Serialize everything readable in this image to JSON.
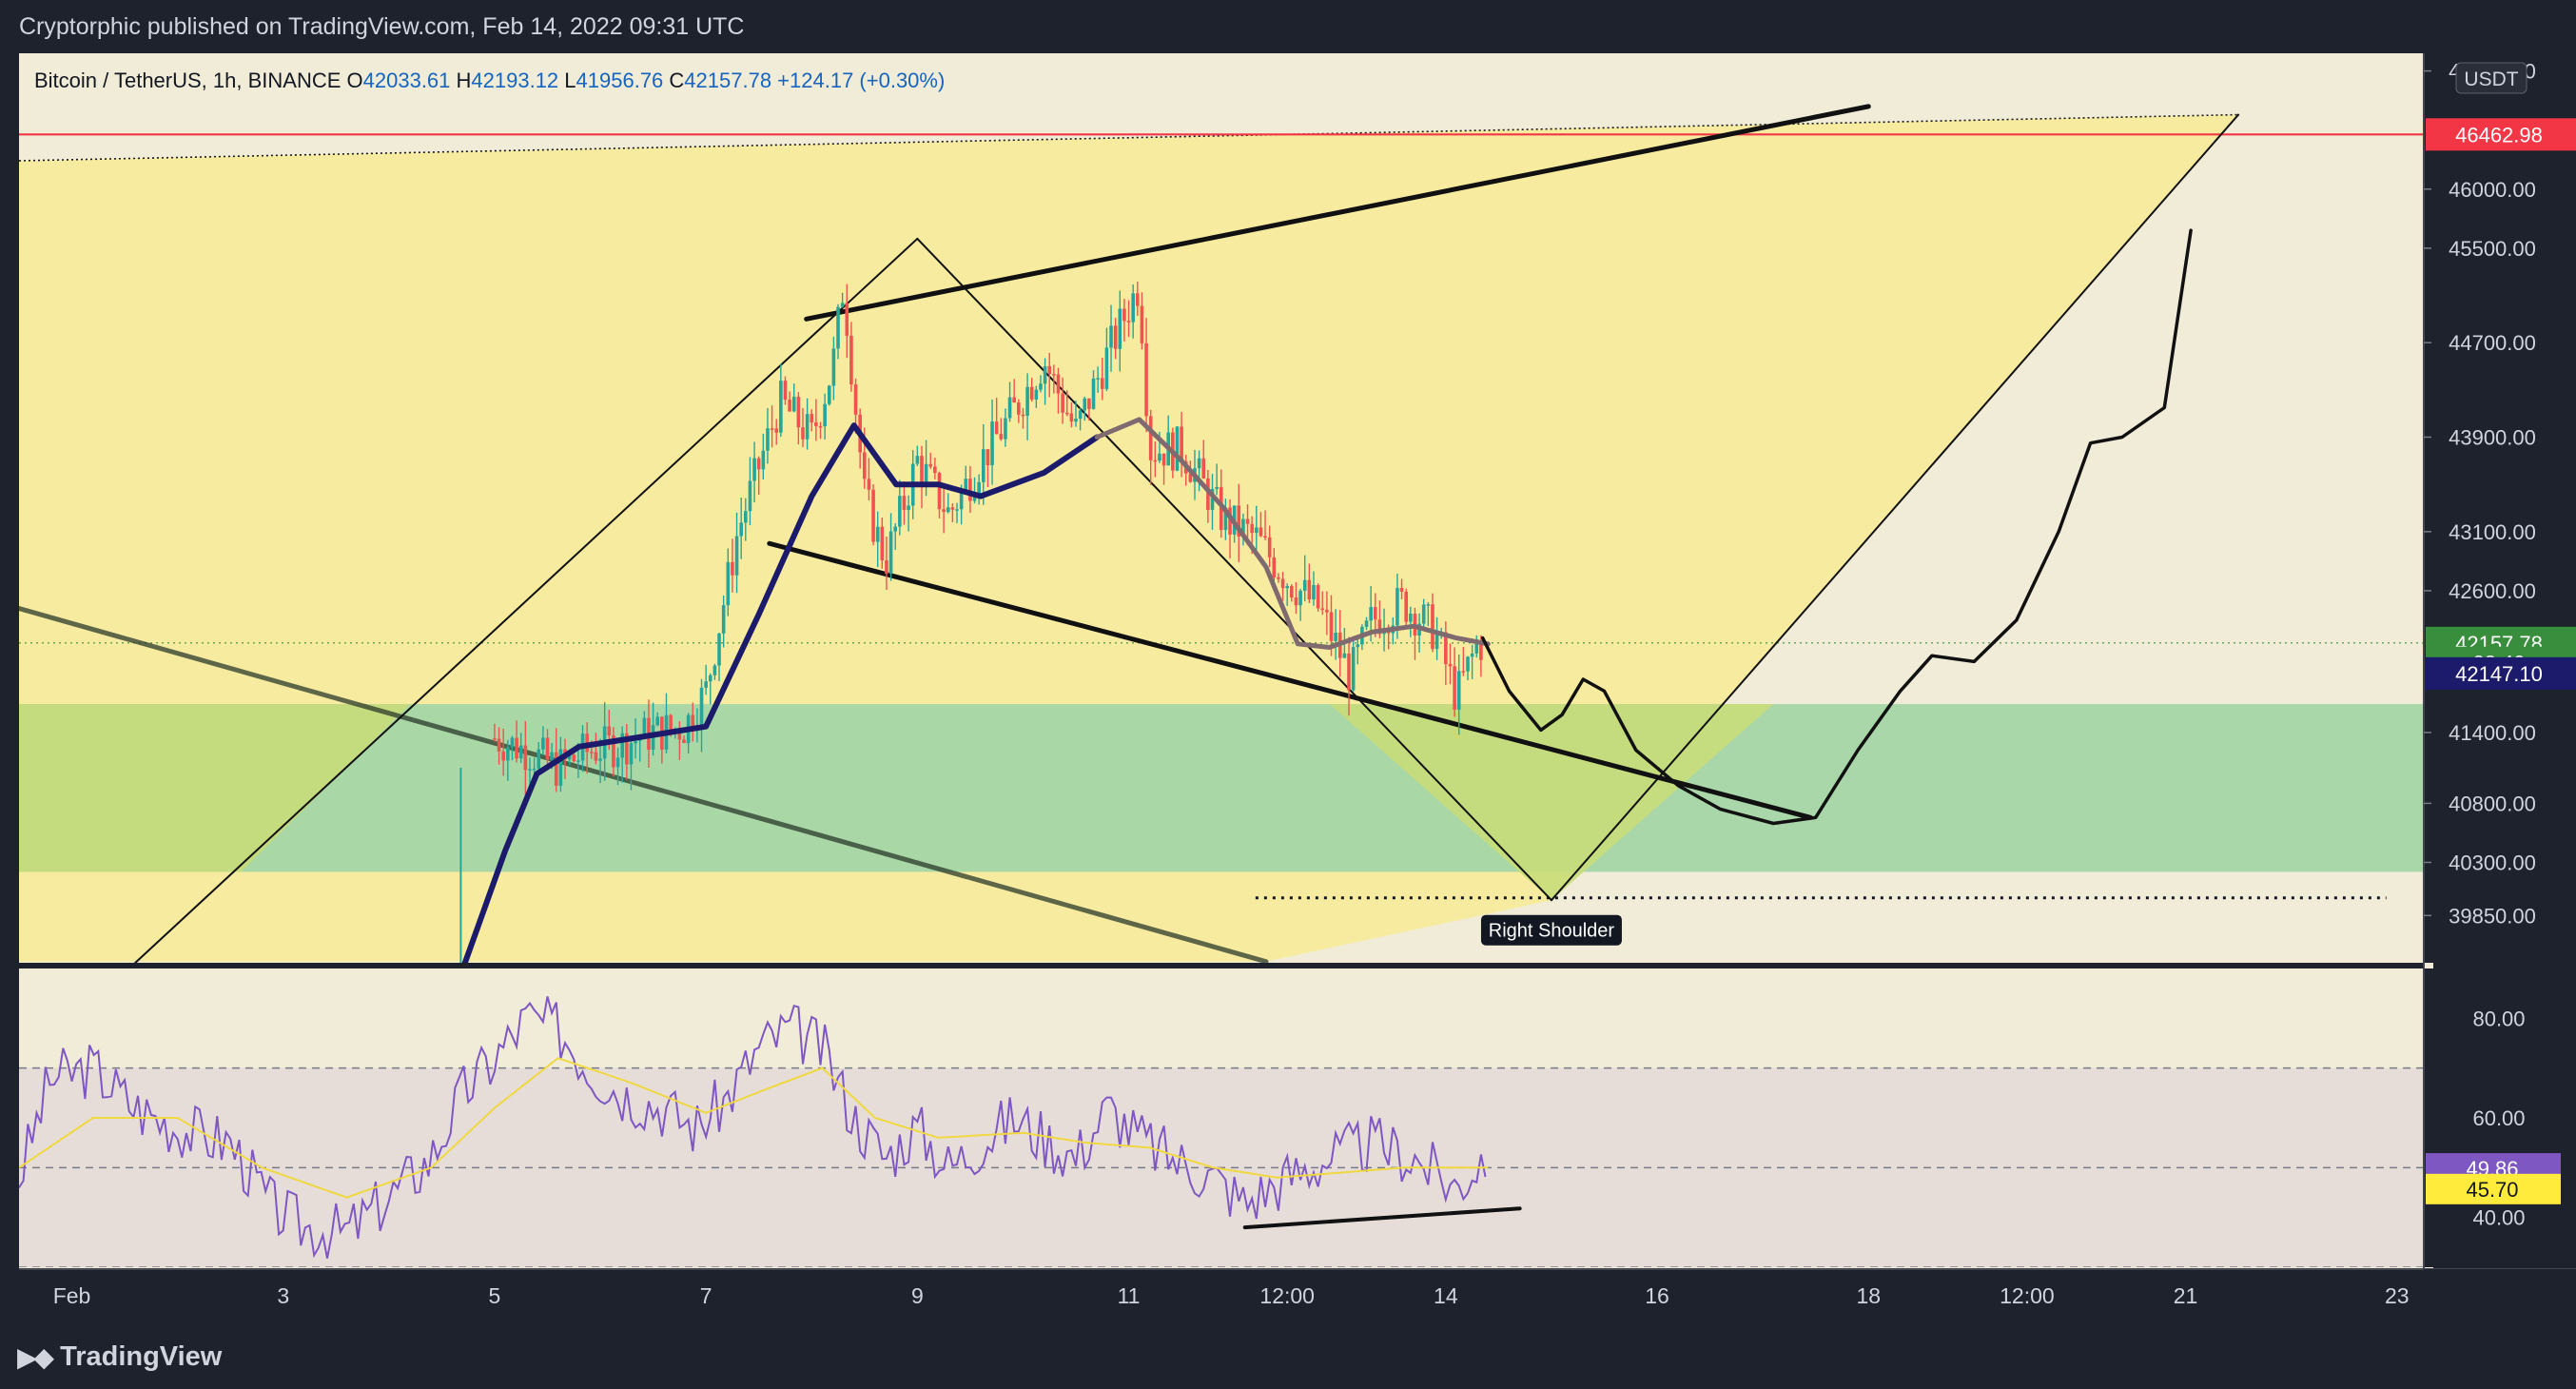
{
  "header": {
    "publisher_line": "Cryptorphic published on TradingView.com, Feb 14, 2022 09:31 UTC"
  },
  "legend": {
    "symbol": "Bitcoin / TetherUS, 1h, BINANCE",
    "open_label": "O",
    "open": "42033.61",
    "high_label": "H",
    "high": "42193.12",
    "low_label": "L",
    "low": "41956.76",
    "close_label": "C",
    "close": "42157.78",
    "change": "+124.17 (+0.30%)"
  },
  "price_axis": {
    "currency": "USDT",
    "ticks": [
      "47000.00",
      "46000.00",
      "45500.00",
      "44700.00",
      "43900.00",
      "43100.00",
      "42600.00",
      "41400.00",
      "40800.00",
      "40300.00",
      "39850.00"
    ],
    "tick_values": [
      47000,
      46000,
      45500,
      44700,
      43900,
      43100,
      42600,
      41400,
      40800,
      40300,
      39850
    ],
    "badges": [
      {
        "name": "resistance-badge",
        "text": "46462.98",
        "value": 46462.98,
        "color": "#f23645",
        "text_color": "#ffffff"
      },
      {
        "name": "last-price-badge",
        "text": "42157.78",
        "value": 42157.78,
        "color": "#388e3c",
        "text_color": "#ffffff"
      },
      {
        "name": "countdown-badge",
        "text": "28:40",
        "value": 41990,
        "color": "#388e3c",
        "text_color": "#ffffff"
      },
      {
        "name": "ma-value-badge",
        "text": "42147.10",
        "value": 41900,
        "color": "#1c1a6b",
        "text_color": "#ffffff"
      }
    ]
  },
  "rsi_axis": {
    "ticks": [
      "80.00",
      "60.00",
      "40.00"
    ],
    "tick_values": [
      80,
      60,
      40
    ],
    "badges": [
      {
        "name": "rsi-value-badge",
        "text": "49.86",
        "value": 49.86,
        "color": "#7e57c2",
        "text_color": "#ffffff"
      },
      {
        "name": "rsi-ma-badge",
        "text": "45.70",
        "value": 45.7,
        "color": "#ffeb3b",
        "text_color": "#131722"
      }
    ]
  },
  "time_axis": {
    "labels": [
      "Feb",
      "3",
      "5",
      "7",
      "9",
      "11",
      "12:00",
      "14",
      "16",
      "18",
      "12:00",
      "21",
      "23"
    ],
    "label_days": [
      1,
      3,
      5,
      7,
      9,
      11,
      12.5,
      14,
      16,
      18,
      19.5,
      21,
      23
    ]
  },
  "annotation": {
    "text": "Right Shoulder",
    "day": 15,
    "price": 40000
  },
  "footer": {
    "brand": "TradingView"
  },
  "colors": {
    "background": "#f1ecd8",
    "pattern_fill": "#f7eba0",
    "support_zone": "#a5d6a7",
    "up_candle": "#26a69a",
    "down_candle": "#ef5350",
    "moving_average_1": "#1c1a6b",
    "moving_average_2": "#7f6a70",
    "rsi_line": "#7e57c2",
    "rsi_ma": "#f0d840",
    "rsi_band": "#e6ddd8",
    "resistance": "#f23645"
  },
  "chart_data": {
    "type": "candlestick",
    "symbol": "BTC/USDT",
    "interval": "1h",
    "x_unit": "day of Feb 2022",
    "price_range": [
      39450,
      47150
    ],
    "time_range": [
      0.5,
      23.1
    ],
    "resistance_level": 46462.98,
    "support_zone": [
      40220,
      41640
    ],
    "neckline_dotted_price": 40000,
    "price_path": [
      [
        5.0,
        41350
      ],
      [
        5.3,
        41250
      ],
      [
        5.6,
        41100
      ],
      [
        5.9,
        41250
      ],
      [
        6.2,
        41300
      ],
      [
        6.5,
        41400
      ],
      [
        6.8,
        41450
      ],
      [
        7.0,
        41750
      ],
      [
        7.3,
        43100
      ],
      [
        7.7,
        44200
      ],
      [
        8.0,
        43900
      ],
      [
        8.2,
        44500
      ],
      [
        8.3,
        45200
      ],
      [
        8.5,
        43400
      ],
      [
        8.7,
        42850
      ],
      [
        9.0,
        43700
      ],
      [
        9.3,
        43250
      ],
      [
        9.6,
        43700
      ],
      [
        9.9,
        44100
      ],
      [
        10.2,
        44550
      ],
      [
        10.5,
        43950
      ],
      [
        10.8,
        44600
      ],
      [
        11.1,
        45200
      ],
      [
        11.2,
        43800
      ],
      [
        11.5,
        43800
      ],
      [
        11.9,
        43200
      ],
      [
        12.2,
        43050
      ],
      [
        12.5,
        42700
      ],
      [
        12.8,
        42450
      ],
      [
        13.1,
        41880
      ],
      [
        13.3,
        42350
      ],
      [
        13.6,
        42500
      ],
      [
        13.9,
        42250
      ],
      [
        14.1,
        41700
      ],
      [
        14.3,
        42150
      ]
    ],
    "moving_averages": [
      {
        "name": "ma-fast",
        "points": [
          [
            4.7,
            39400
          ],
          [
            5.1,
            40400
          ],
          [
            5.4,
            41050
          ],
          [
            5.8,
            41280
          ],
          [
            6.3,
            41350
          ],
          [
            7.0,
            41450
          ],
          [
            7.5,
            42400
          ],
          [
            8.0,
            43400
          ],
          [
            8.4,
            44000
          ],
          [
            8.8,
            43500
          ],
          [
            9.2,
            43500
          ],
          [
            9.6,
            43400
          ],
          [
            10.2,
            43600
          ],
          [
            10.7,
            43900
          ]
        ]
      },
      {
        "name": "ma-slow",
        "points": [
          [
            10.7,
            43900
          ],
          [
            11.1,
            44050
          ],
          [
            11.5,
            43700
          ],
          [
            11.9,
            43300
          ],
          [
            12.3,
            42800
          ],
          [
            12.6,
            42150
          ],
          [
            12.9,
            42120
          ],
          [
            13.3,
            42250
          ],
          [
            13.7,
            42300
          ],
          [
            14.1,
            42200
          ],
          [
            14.4,
            42150
          ]
        ]
      }
    ],
    "projection": [
      [
        14.35,
        42200
      ],
      [
        14.6,
        41750
      ],
      [
        14.9,
        41420
      ],
      [
        15.1,
        41550
      ],
      [
        15.3,
        41850
      ],
      [
        15.5,
        41750
      ],
      [
        15.8,
        41250
      ],
      [
        16.2,
        40950
      ],
      [
        16.6,
        40750
      ],
      [
        17.1,
        40630
      ],
      [
        17.5,
        40680
      ],
      [
        17.9,
        41250
      ],
      [
        18.3,
        41750
      ],
      [
        18.6,
        42050
      ],
      [
        19.0,
        42000
      ],
      [
        19.4,
        42350
      ],
      [
        19.8,
        43100
      ],
      [
        20.1,
        43850
      ],
      [
        20.4,
        43900
      ],
      [
        20.8,
        44150
      ],
      [
        21.0,
        45350
      ],
      [
        21.05,
        45650
      ]
    ],
    "trendlines": [
      {
        "name": "upper-channel-line",
        "from": [
          7.95,
          44900
        ],
        "to": [
          18.0,
          46700
        ]
      },
      {
        "name": "lower-channel-line",
        "from": [
          7.6,
          43000
        ],
        "to": [
          17.45,
          40680
        ]
      },
      {
        "name": "long-descending-line",
        "from": [
          0.5,
          42450
        ],
        "to": [
          12.3,
          39460
        ]
      },
      {
        "name": "diamond-top-left",
        "from": [
          1.6,
          39450
        ],
        "to": [
          9.0,
          45580
        ]
      },
      {
        "name": "diamond-top-right",
        "from": [
          9.0,
          45580
        ],
        "to": [
          15.0,
          39980
        ]
      },
      {
        "name": "diamond-bottom-right",
        "from": [
          15.0,
          39980
        ],
        "to": [
          21.5,
          46630
        ]
      }
    ],
    "rsi": {
      "range": [
        30,
        90
      ],
      "band": [
        30,
        70
      ],
      "midline": 50,
      "values": [
        [
          0.5,
          48
        ],
        [
          0.8,
          68
        ],
        [
          1.2,
          70
        ],
        [
          1.6,
          62
        ],
        [
          2.0,
          58
        ],
        [
          2.5,
          55
        ],
        [
          2.9,
          42
        ],
        [
          3.2,
          38
        ],
        [
          3.6,
          37
        ],
        [
          4.0,
          44
        ],
        [
          4.4,
          52
        ],
        [
          4.7,
          65
        ],
        [
          5.0,
          72
        ],
        [
          5.3,
          80
        ],
        [
          5.6,
          78
        ],
        [
          5.9,
          70
        ],
        [
          6.2,
          65
        ],
        [
          6.6,
          62
        ],
        [
          6.9,
          58
        ],
        [
          7.2,
          64
        ],
        [
          7.5,
          74
        ],
        [
          7.8,
          78
        ],
        [
          8.1,
          74
        ],
        [
          8.4,
          60
        ],
        [
          8.7,
          52
        ],
        [
          9.0,
          58
        ],
        [
          9.3,
          50
        ],
        [
          9.6,
          55
        ],
        [
          9.9,
          60
        ],
        [
          10.2,
          56
        ],
        [
          10.5,
          52
        ],
        [
          10.8,
          62
        ],
        [
          11.1,
          56
        ],
        [
          11.4,
          52
        ],
        [
          11.8,
          48
        ],
        [
          12.1,
          43
        ],
        [
          12.5,
          48
        ],
        [
          12.9,
          52
        ],
        [
          13.3,
          55
        ],
        [
          13.7,
          52
        ],
        [
          14.1,
          46
        ],
        [
          14.3,
          51
        ],
        [
          14.4,
          54
        ]
      ],
      "ma_values": [
        [
          0.5,
          50
        ],
        [
          1.2,
          60
        ],
        [
          2.0,
          60
        ],
        [
          2.8,
          50
        ],
        [
          3.6,
          44
        ],
        [
          4.4,
          50
        ],
        [
          5.0,
          62
        ],
        [
          5.6,
          72
        ],
        [
          6.3,
          67
        ],
        [
          7.0,
          61
        ],
        [
          7.6,
          66
        ],
        [
          8.1,
          70
        ],
        [
          8.6,
          60
        ],
        [
          9.2,
          56
        ],
        [
          10.0,
          57
        ],
        [
          10.6,
          55
        ],
        [
          11.2,
          54
        ],
        [
          11.8,
          50
        ],
        [
          12.4,
          48
        ],
        [
          13.0,
          49
        ],
        [
          13.6,
          50
        ],
        [
          14.4,
          50
        ]
      ],
      "divergence_line": {
        "from": [
          12.1,
          38
        ],
        "to": [
          14.7,
          41.8
        ]
      }
    }
  }
}
